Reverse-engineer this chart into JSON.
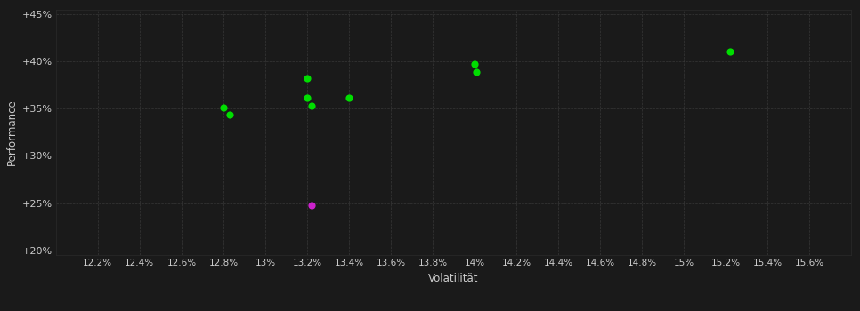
{
  "background_color": "#1a1a1a",
  "plot_bg_color": "#1a1a1a",
  "grid_color": "#3a3a3a",
  "text_color": "#cccccc",
  "xlabel": "Volatilität",
  "ylabel": "Performance",
  "xlim": [
    0.12,
    0.158
  ],
  "ylim": [
    0.195,
    0.455
  ],
  "xticks": [
    0.122,
    0.124,
    0.126,
    0.128,
    0.13,
    0.132,
    0.134,
    0.136,
    0.138,
    0.14,
    0.142,
    0.144,
    0.146,
    0.148,
    0.15,
    0.152,
    0.154,
    0.156
  ],
  "yticks": [
    0.2,
    0.25,
    0.3,
    0.35,
    0.4,
    0.45
  ],
  "green_points": [
    [
      0.128,
      0.351
    ],
    [
      0.1283,
      0.344
    ],
    [
      0.132,
      0.382
    ],
    [
      0.132,
      0.361
    ],
    [
      0.1322,
      0.353
    ],
    [
      0.134,
      0.361
    ],
    [
      0.14,
      0.397
    ],
    [
      0.1401,
      0.389
    ],
    [
      0.1522,
      0.41
    ]
  ],
  "magenta_points": [
    [
      0.1322,
      0.248
    ]
  ],
  "green_color": "#00dd00",
  "magenta_color": "#cc22cc",
  "marker_size": 35,
  "figsize": [
    9.66,
    3.5
  ],
  "dpi": 100
}
